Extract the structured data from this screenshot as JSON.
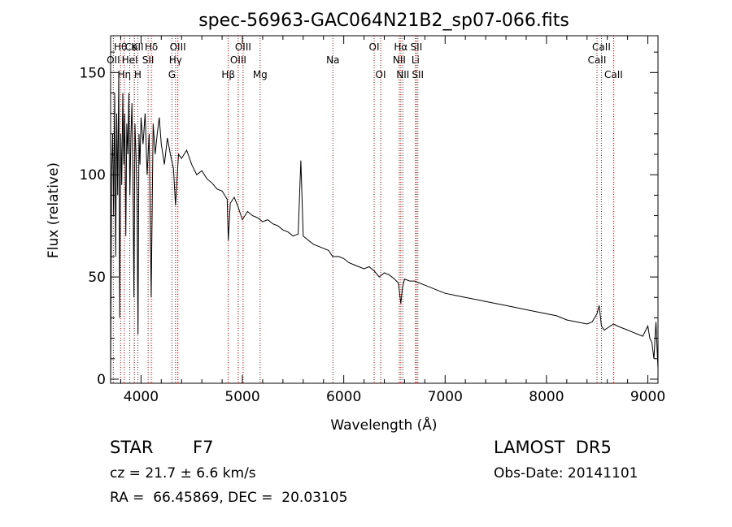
{
  "chart_data": {
    "type": "line",
    "title": "spec-56963-GAC064N21B2_sp07-066.fits",
    "xlabel": "Wavelength (Å)",
    "ylabel": "Flux (relative)",
    "xlim": [
      3700,
      9100
    ],
    "ylim": [
      -2,
      168
    ],
    "x_ticks": [
      4000,
      5000,
      6000,
      7000,
      8000,
      9000
    ],
    "y_ticks": [
      0,
      50,
      100,
      150
    ],
    "grid": false,
    "series": [
      {
        "x": [
          3700,
          3710,
          3720,
          3730,
          3740,
          3750,
          3760,
          3770,
          3780,
          3790,
          3800,
          3810,
          3820,
          3830,
          3840,
          3850,
          3860,
          3870,
          3880,
          3890,
          3900,
          3910,
          3920,
          3930,
          3940,
          3950,
          3960,
          3970,
          3980,
          3990,
          4000,
          4020,
          4040,
          4060,
          4080,
          4100,
          4120,
          4140,
          4160,
          4180,
          4200,
          4230,
          4260,
          4290,
          4320,
          4340,
          4370,
          4400,
          4450,
          4500,
          4550,
          4600,
          4650,
          4700,
          4750,
          4800,
          4850,
          4861,
          4880,
          4920,
          4960,
          5000,
          5050,
          5100,
          5150,
          5200,
          5250,
          5300,
          5350,
          5400,
          5450,
          5500,
          5550,
          5577,
          5600,
          5650,
          5700,
          5750,
          5800,
          5850,
          5890,
          5950,
          6000,
          6050,
          6100,
          6150,
          6200,
          6250,
          6300,
          6350,
          6400,
          6450,
          6500,
          6540,
          6563,
          6580,
          6600,
          6650,
          6700,
          6750,
          6800,
          6850,
          6900,
          6950,
          7000,
          7100,
          7200,
          7300,
          7400,
          7500,
          7600,
          7700,
          7800,
          7900,
          8000,
          8100,
          8200,
          8300,
          8400,
          8450,
          8498,
          8520,
          8542,
          8570,
          8600,
          8662,
          8700,
          8750,
          8800,
          8850,
          8900,
          8950,
          9000,
          9020,
          9040,
          9060,
          9080,
          9100
        ],
        "y": [
          0,
          100,
          120,
          80,
          140,
          60,
          130,
          90,
          150,
          30,
          120,
          95,
          140,
          105,
          130,
          70,
          125,
          110,
          140,
          90,
          118,
          135,
          100,
          40,
          125,
          110,
          90,
          22,
          120,
          105,
          128,
          115,
          130,
          100,
          120,
          40,
          125,
          110,
          120,
          128,
          115,
          105,
          118,
          110,
          103,
          85,
          110,
          108,
          112,
          105,
          100,
          102,
          98,
          96,
          93,
          92,
          88,
          68,
          86,
          89,
          84,
          78,
          82,
          80,
          79,
          77,
          78,
          76,
          75,
          73,
          72,
          70,
          71,
          107,
          70,
          68,
          66,
          65,
          64,
          63,
          60,
          60,
          59,
          57,
          56,
          55,
          54,
          55,
          53,
          50,
          52,
          51,
          49,
          47,
          37,
          45,
          49,
          48,
          48,
          47,
          46,
          45,
          44,
          43,
          42,
          41,
          40,
          39,
          38,
          37,
          36,
          35,
          34,
          33,
          32,
          31,
          29,
          28,
          27,
          28,
          32,
          36,
          26,
          24,
          25,
          27,
          26,
          25,
          24,
          23,
          22,
          21,
          26,
          20,
          18,
          10,
          28,
          5
        ]
      }
    ],
    "spectral_lines": [
      {
        "label": "Hθ",
        "wl": 3798,
        "row": 1
      },
      {
        "label": "OII",
        "wl": 3727,
        "row": 2
      },
      {
        "label": "Hη",
        "wl": 3835,
        "row": 3
      },
      {
        "label": "CaII",
        "wl": 3934,
        "row": 1
      },
      {
        "label": "K",
        "wl": 3934,
        "row": 1
      },
      {
        "label": "HeI",
        "wl": 3889,
        "row": 2
      },
      {
        "label": "H",
        "wl": 3968,
        "row": 3
      },
      {
        "label": "Hδ",
        "wl": 4102,
        "row": 1
      },
      {
        "label": "SII",
        "wl": 4070,
        "row": 2
      },
      {
        "label": "OIII",
        "wl": 4363,
        "row": 1
      },
      {
        "label": "Hγ",
        "wl": 4340,
        "row": 2
      },
      {
        "label": "G",
        "wl": 4305,
        "row": 3
      },
      {
        "label": "Hβ",
        "wl": 4861,
        "row": 3
      },
      {
        "label": "OIII",
        "wl": 5007,
        "row": 1
      },
      {
        "label": "OIII",
        "wl": 4959,
        "row": 2
      },
      {
        "label": "Mg",
        "wl": 5175,
        "row": 3
      },
      {
        "label": "Na",
        "wl": 5893,
        "row": 2
      },
      {
        "label": "OI",
        "wl": 6300,
        "row": 1
      },
      {
        "label": "OI",
        "wl": 6364,
        "row": 3
      },
      {
        "label": "Hα",
        "wl": 6563,
        "row": 1
      },
      {
        "label": "NII",
        "wl": 6548,
        "row": 2
      },
      {
        "label": "NII",
        "wl": 6583,
        "row": 3
      },
      {
        "label": "SII",
        "wl": 6716,
        "row": 1
      },
      {
        "label": "Li",
        "wl": 6708,
        "row": 2
      },
      {
        "label": "SII",
        "wl": 6731,
        "row": 3
      },
      {
        "label": "CaII",
        "wl": 8542,
        "row": 1
      },
      {
        "label": "CaII",
        "wl": 8498,
        "row": 2
      },
      {
        "label": "CaII",
        "wl": 8662,
        "row": 3
      }
    ],
    "line_marker_color": "#cc0000"
  },
  "info": {
    "object_class": "STAR",
    "subclass": "F7",
    "survey": "LAMOST  DR5",
    "velocity": "cz = 21.7 ± 6.6 km/s",
    "obs_date": "Obs-Date: 20141101",
    "coords": "RA =  66.45869, DEC =  20.03105"
  }
}
